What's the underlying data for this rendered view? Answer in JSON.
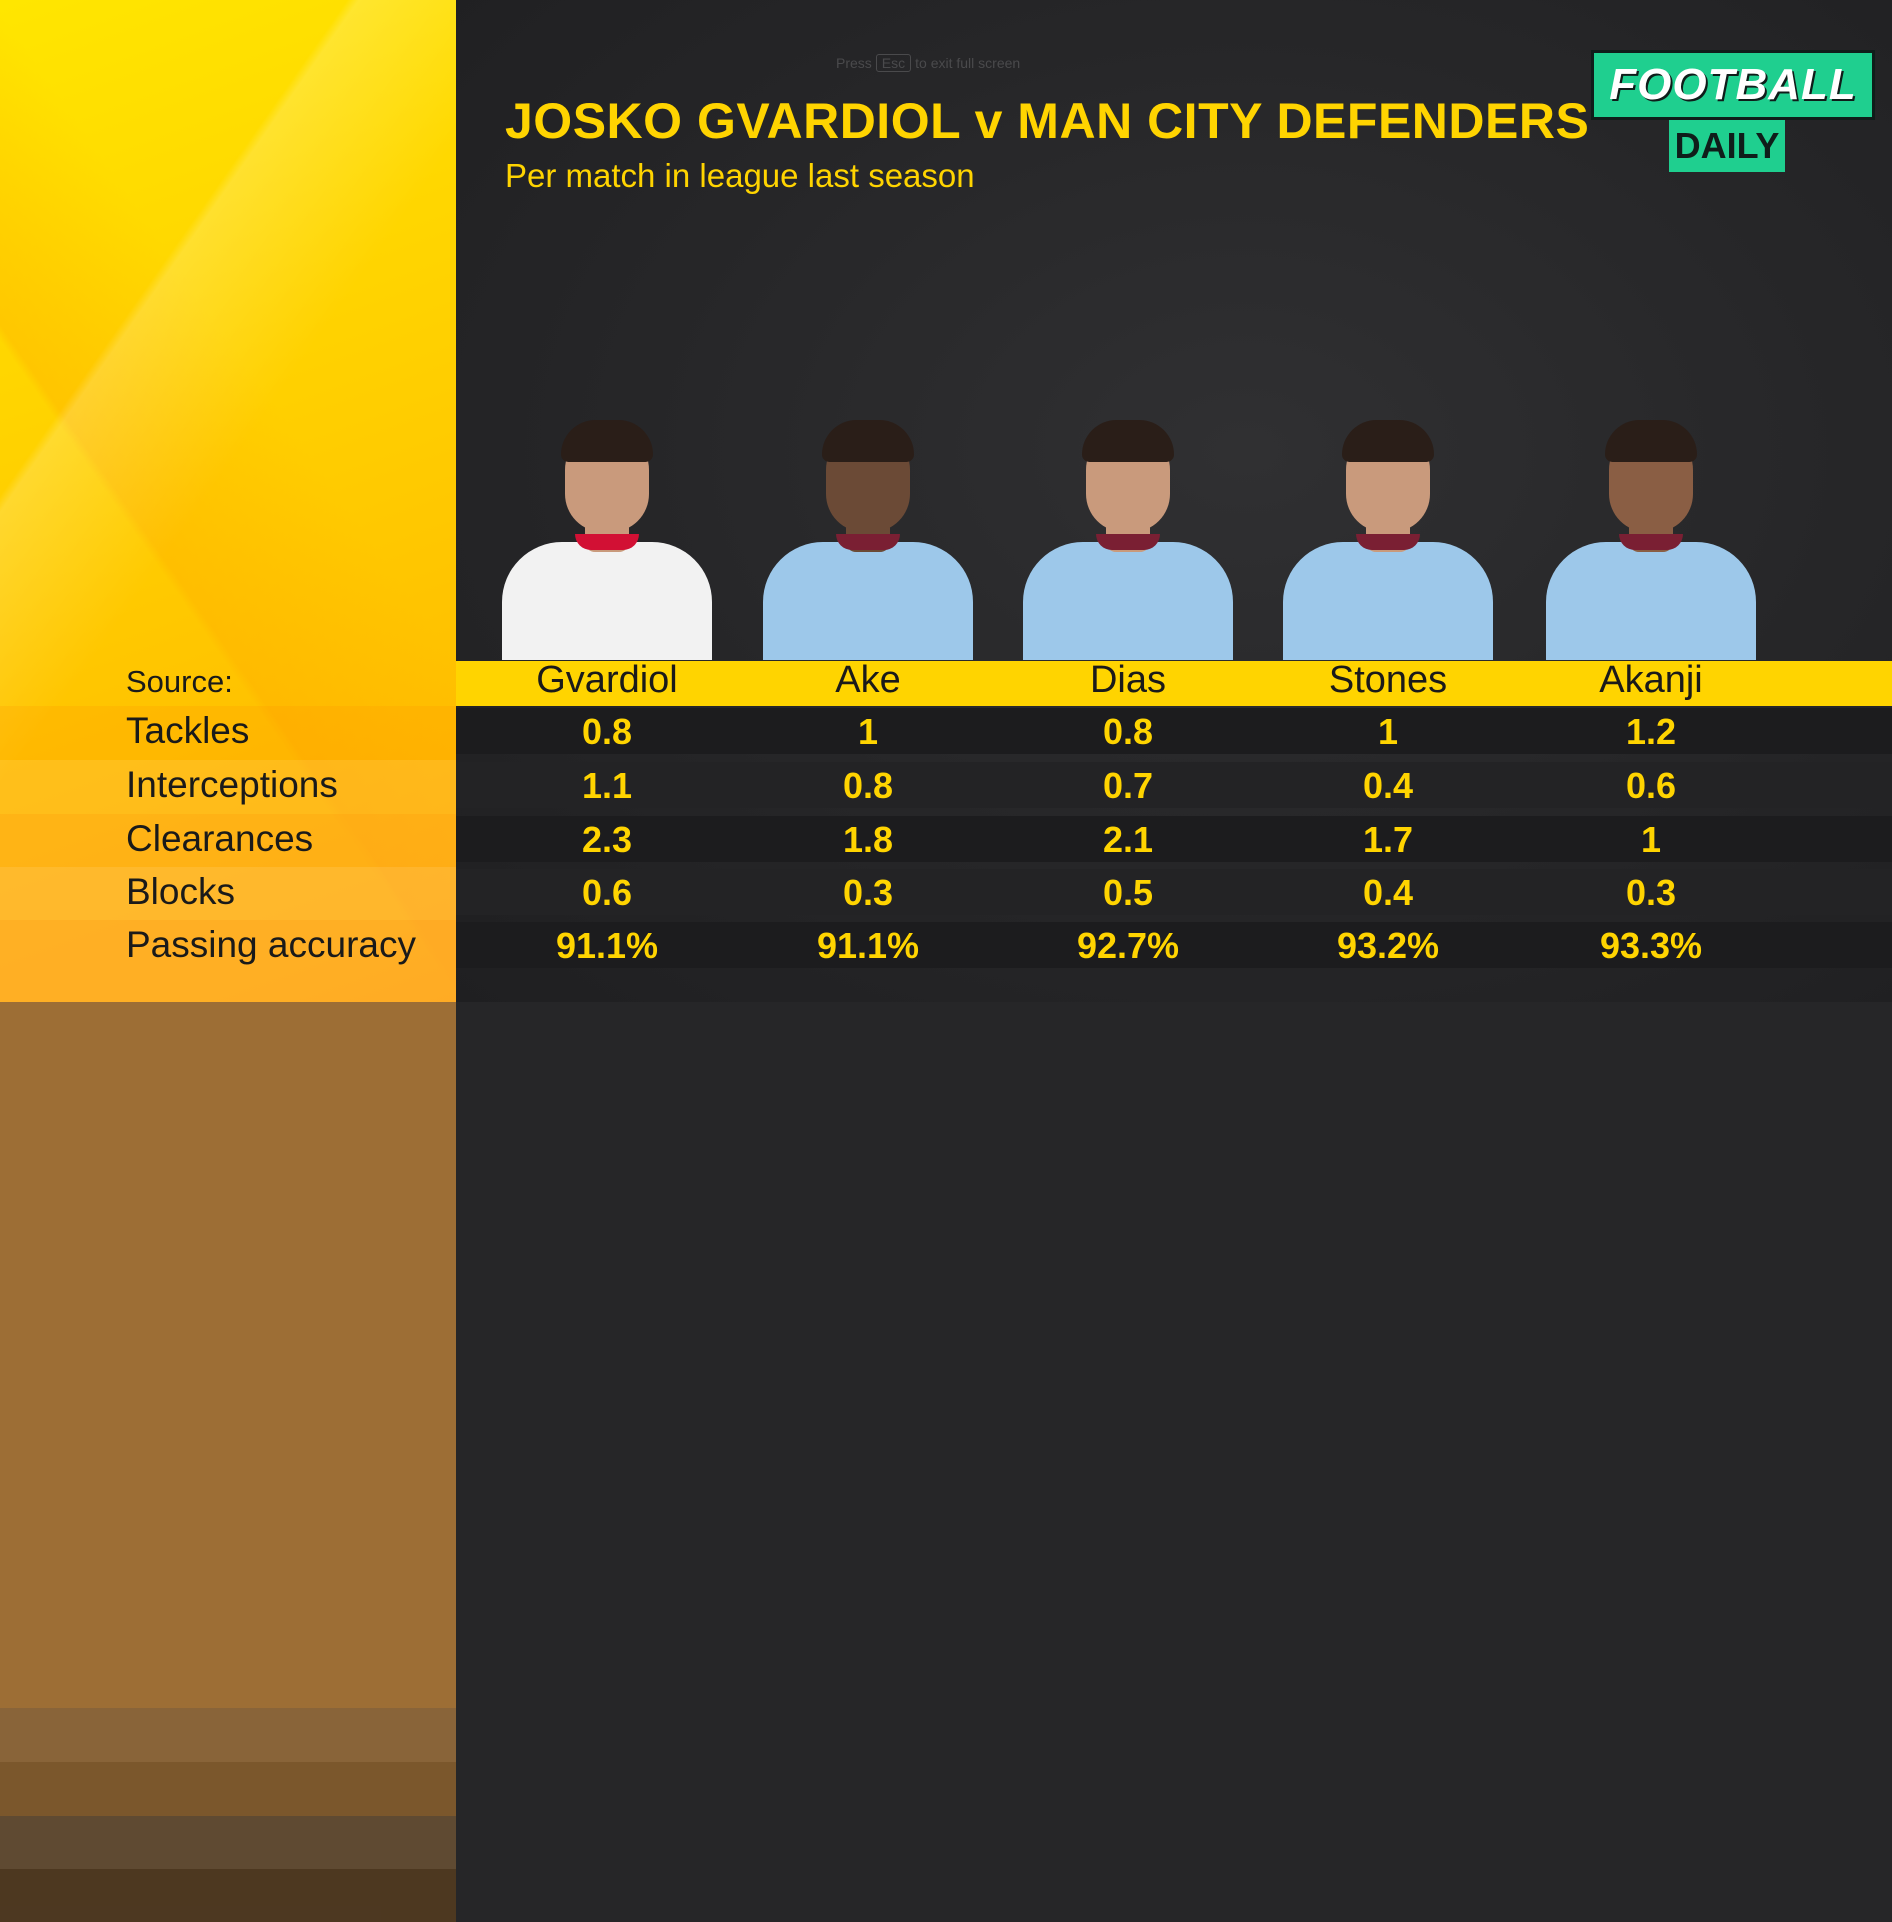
{
  "hint": {
    "pre": "Press",
    "key": "Esc",
    "post": "to exit full screen"
  },
  "title": "JOSKO GVARDIOL v MAN CITY DEFENDERS",
  "subtitle": "Per match in league last season",
  "logo": {
    "top": "FOOTBALL",
    "bottom": "DAILY"
  },
  "source_label": "Source:",
  "colors": {
    "accent": "#ffd400",
    "background": "#262628",
    "logo_green": "#1fcf8f",
    "city_blue": "#9dc8ea",
    "leipzig_white": "#f2f2f2"
  },
  "chart_data": {
    "type": "table",
    "title": "JOSKO GVARDIOL v MAN CITY DEFENDERS",
    "subtitle": "Per match in league last season",
    "columns": [
      "Gvardiol",
      "Ake",
      "Dias",
      "Stones",
      "Akanji"
    ],
    "rows": [
      {
        "label": "Tackles",
        "values": [
          "0.8",
          "1",
          "0.8",
          "1",
          "1.2"
        ]
      },
      {
        "label": "Interceptions",
        "values": [
          "1.1",
          "0.8",
          "0.7",
          "0.4",
          "0.6"
        ]
      },
      {
        "label": "Clearances",
        "values": [
          "2.3",
          "1.8",
          "2.1",
          "1.7",
          "1"
        ]
      },
      {
        "label": "Blocks",
        "values": [
          "0.6",
          "0.3",
          "0.5",
          "0.4",
          "0.3"
        ]
      },
      {
        "label": "Passing accuracy",
        "values": [
          "91.1%",
          "91.1%",
          "92.7%",
          "93.2%",
          "93.3%"
        ]
      }
    ]
  }
}
